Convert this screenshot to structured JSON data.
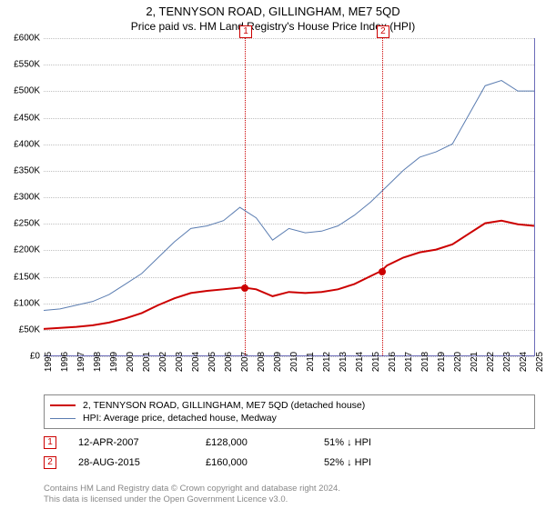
{
  "title": "2, TENNYSON ROAD, GILLINGHAM, ME7 5QD",
  "subtitle": "Price paid vs. HM Land Registry's House Price Index (HPI)",
  "chart": {
    "type": "line",
    "xlim": [
      1995,
      2025
    ],
    "ylim": [
      0,
      600000
    ],
    "ytick_step": 50000,
    "ytick_labels": [
      "£0",
      "£50K",
      "£100K",
      "£150K",
      "£200K",
      "£250K",
      "£300K",
      "£350K",
      "£400K",
      "£450K",
      "£500K",
      "£550K",
      "£600K"
    ],
    "xtick_step": 1,
    "xtick_labels": [
      "1995",
      "1996",
      "1997",
      "1998",
      "1999",
      "2000",
      "2001",
      "2002",
      "2003",
      "2004",
      "2005",
      "2006",
      "2007",
      "2008",
      "2009",
      "2010",
      "2011",
      "2012",
      "2013",
      "2014",
      "2015",
      "2016",
      "2017",
      "2018",
      "2019",
      "2020",
      "2021",
      "2022",
      "2023",
      "2024",
      "2025"
    ],
    "grid_color": "#c0c0c0",
    "axis_color": "#6b6bb8",
    "background_color": "#ffffff",
    "series": [
      {
        "name": "property_price",
        "label": "2, TENNYSON ROAD, GILLINGHAM, ME7 5QD (detached house)",
        "color": "#cc0000",
        "width": 2,
        "data": [
          [
            1995,
            50000
          ],
          [
            1996,
            52000
          ],
          [
            1997,
            54000
          ],
          [
            1998,
            57000
          ],
          [
            1999,
            62000
          ],
          [
            2000,
            70000
          ],
          [
            2001,
            80000
          ],
          [
            2002,
            95000
          ],
          [
            2003,
            108000
          ],
          [
            2004,
            118000
          ],
          [
            2005,
            122000
          ],
          [
            2006,
            125000
          ],
          [
            2007,
            128000
          ],
          [
            2007.28,
            128000
          ],
          [
            2008,
            125000
          ],
          [
            2009,
            112000
          ],
          [
            2010,
            120000
          ],
          [
            2011,
            118000
          ],
          [
            2012,
            120000
          ],
          [
            2013,
            125000
          ],
          [
            2014,
            135000
          ],
          [
            2015,
            150000
          ],
          [
            2015.66,
            160000
          ],
          [
            2016,
            170000
          ],
          [
            2017,
            185000
          ],
          [
            2018,
            195000
          ],
          [
            2019,
            200000
          ],
          [
            2020,
            210000
          ],
          [
            2021,
            230000
          ],
          [
            2022,
            250000
          ],
          [
            2023,
            255000
          ],
          [
            2024,
            248000
          ],
          [
            2025,
            245000
          ]
        ]
      },
      {
        "name": "hpi",
        "label": "HPI: Average price, detached house, Medway",
        "color": "#5b7db1",
        "width": 1,
        "data": [
          [
            1995,
            85000
          ],
          [
            1996,
            88000
          ],
          [
            1997,
            95000
          ],
          [
            1998,
            102000
          ],
          [
            1999,
            115000
          ],
          [
            2000,
            135000
          ],
          [
            2001,
            155000
          ],
          [
            2002,
            185000
          ],
          [
            2003,
            215000
          ],
          [
            2004,
            240000
          ],
          [
            2005,
            245000
          ],
          [
            2006,
            255000
          ],
          [
            2007,
            280000
          ],
          [
            2008,
            260000
          ],
          [
            2009,
            218000
          ],
          [
            2010,
            240000
          ],
          [
            2011,
            232000
          ],
          [
            2012,
            235000
          ],
          [
            2013,
            245000
          ],
          [
            2014,
            265000
          ],
          [
            2015,
            290000
          ],
          [
            2016,
            320000
          ],
          [
            2017,
            350000
          ],
          [
            2018,
            375000
          ],
          [
            2019,
            385000
          ],
          [
            2020,
            400000
          ],
          [
            2021,
            455000
          ],
          [
            2022,
            510000
          ],
          [
            2023,
            520000
          ],
          [
            2024,
            500000
          ],
          [
            2025,
            500000
          ]
        ]
      }
    ],
    "markers": [
      {
        "x": 2007.28,
        "y": 128000,
        "color": "#cc0000"
      },
      {
        "x": 2015.66,
        "y": 160000,
        "color": "#cc0000"
      }
    ],
    "event_lines": [
      {
        "x": 2007.28,
        "label": "1",
        "color": "#cc0000"
      },
      {
        "x": 2015.66,
        "label": "2",
        "color": "#cc0000"
      }
    ]
  },
  "legend": [
    {
      "label": "2, TENNYSON ROAD, GILLINGHAM, ME7 5QD (detached house)",
      "color": "#cc0000",
      "width": 2
    },
    {
      "label": "HPI: Average price, detached house, Medway",
      "color": "#5b7db1",
      "width": 1
    }
  ],
  "events": [
    {
      "num": "1",
      "date": "12-APR-2007",
      "price": "£128,000",
      "delta": "51% ↓ HPI",
      "color": "#cc0000"
    },
    {
      "num": "2",
      "date": "28-AUG-2015",
      "price": "£160,000",
      "delta": "52% ↓ HPI",
      "color": "#cc0000"
    }
  ],
  "footer": {
    "line1": "Contains HM Land Registry data © Crown copyright and database right 2024.",
    "line2": "This data is licensed under the Open Government Licence v3.0."
  }
}
